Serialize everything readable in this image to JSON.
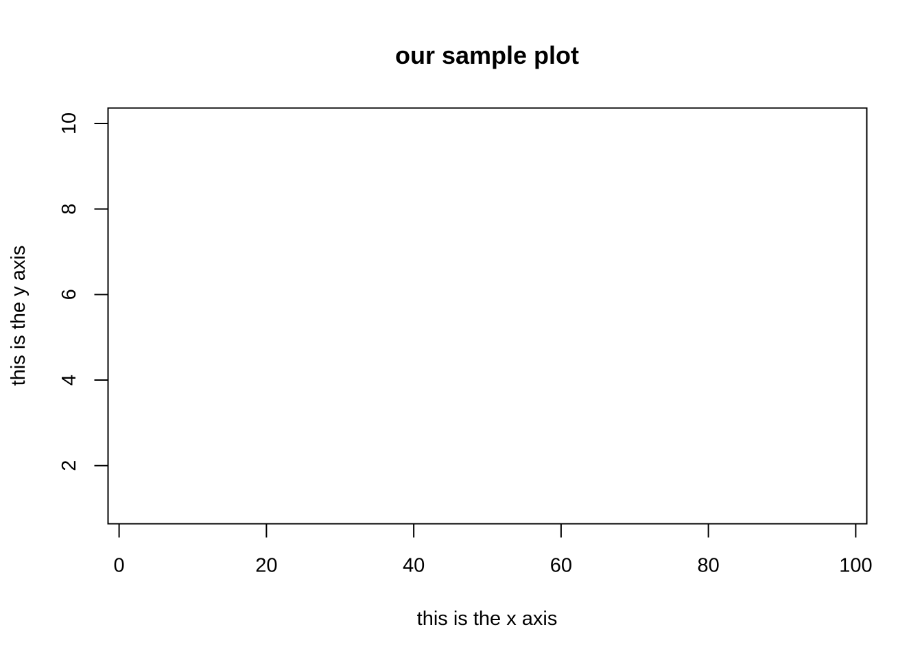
{
  "chart_data": {
    "type": "scatter",
    "title": "our sample plot",
    "xlabel": "this is the x axis",
    "ylabel": "this is the y axis",
    "xlim": [
      -1.5,
      101.5
    ],
    "ylim": [
      0.64,
      10.36
    ],
    "x_ticks": [
      0,
      20,
      40,
      60,
      80,
      100
    ],
    "y_ticks": [
      2,
      4,
      6,
      8,
      10
    ],
    "x_tick_labels": [
      "0",
      "20",
      "40",
      "60",
      "80",
      "100"
    ],
    "y_tick_labels": [
      "2",
      "4",
      "6",
      "8",
      "10"
    ],
    "series": [],
    "grid": false,
    "colors": {
      "axis": "#000000",
      "background": "#ffffff"
    }
  }
}
